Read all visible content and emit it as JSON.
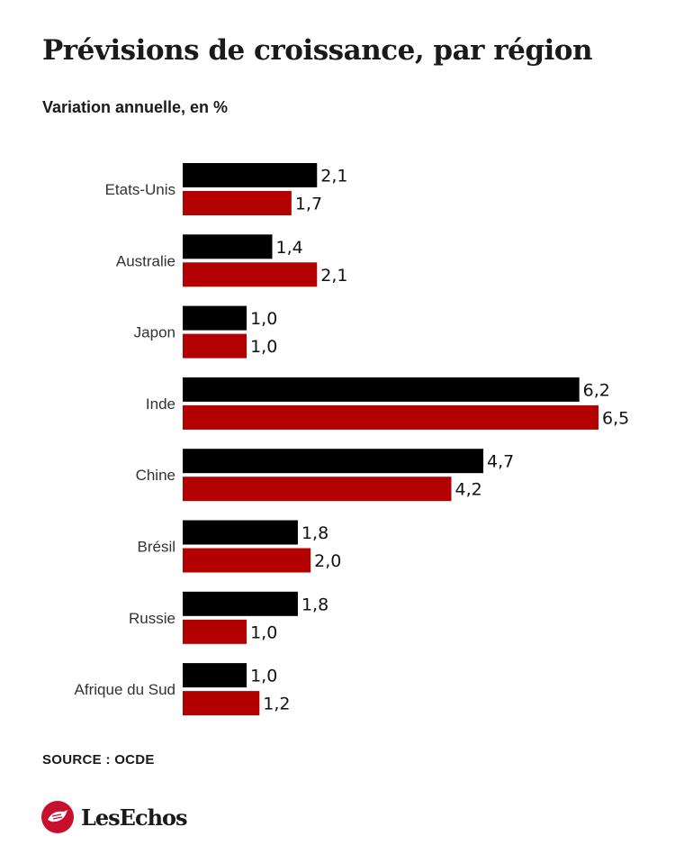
{
  "title": "Prévisions de croissance, par région",
  "subtitle": "Variation annuelle, en %",
  "source": "SOURCE : OCDE",
  "logo": {
    "text": "LesEchos"
  },
  "colors": {
    "series1": "#000000",
    "series2": "#b30000",
    "text": "#111111"
  },
  "chart_data": {
    "type": "bar",
    "orientation": "horizontal",
    "categories": [
      "Etats-Unis",
      "Australie",
      "Japon",
      "Inde",
      "Chine",
      "Brésil",
      "Russie",
      "Afrique du Sud"
    ],
    "series": [
      {
        "values": [
          2.1,
          1.4,
          1.0,
          6.2,
          4.7,
          1.8,
          1.8,
          1.0
        ],
        "labels": [
          "2,1",
          "1,4",
          "1,0",
          "6,2",
          "4,7",
          "1,8",
          "1,8",
          "1,0"
        ],
        "color": "#000000"
      },
      {
        "values": [
          1.7,
          2.1,
          1.0,
          6.5,
          4.2,
          2.0,
          1.0,
          1.2
        ],
        "labels": [
          "1,7",
          "2,1",
          "1,0",
          "6,5",
          "4,2",
          "2,0",
          "1,0",
          "1,2"
        ],
        "color": "#b30000"
      }
    ],
    "xlim": [
      0,
      6.5
    ],
    "grid": false,
    "legend": "none"
  }
}
